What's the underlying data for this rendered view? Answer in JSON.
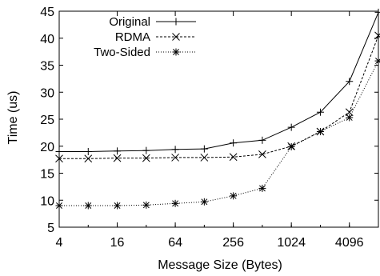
{
  "chart_data": {
    "type": "line",
    "xlabel": "Message Size (Bytes)",
    "ylabel": "Time (us)",
    "x_scale": "log2",
    "x": [
      4,
      8,
      16,
      32,
      64,
      128,
      256,
      512,
      1024,
      2048,
      4096,
      8192
    ],
    "xlim": [
      4,
      8192
    ],
    "ylim": [
      5,
      45
    ],
    "x_ticks": [
      4,
      16,
      64,
      256,
      1024,
      4096
    ],
    "x_tick_labels": [
      "4",
      "16",
      "64",
      "256",
      "1024",
      "4096"
    ],
    "y_ticks": [
      5,
      10,
      15,
      20,
      25,
      30,
      35,
      40,
      45
    ],
    "y_tick_labels": [
      "5",
      "10",
      "15",
      "20",
      "25",
      "30",
      "35",
      "40",
      "45"
    ],
    "grid": false,
    "legend_position": "top-left",
    "series": [
      {
        "name": "Original",
        "marker": "plus",
        "line_style": "solid",
        "values": [
          19.0,
          19.0,
          19.1,
          19.2,
          19.4,
          19.5,
          20.6,
          21.1,
          23.5,
          26.3,
          32.0,
          44.8
        ]
      },
      {
        "name": "RDMA",
        "marker": "x",
        "line_style": "dashed",
        "values": [
          17.7,
          17.7,
          17.8,
          17.8,
          17.9,
          17.9,
          18.0,
          18.5,
          20.0,
          22.7,
          26.3,
          40.5
        ]
      },
      {
        "name": "Two-Sided",
        "marker": "asterisk",
        "line_style": "dotted",
        "values": [
          9.0,
          9.0,
          9.0,
          9.1,
          9.4,
          9.7,
          10.8,
          12.2,
          19.9,
          22.7,
          25.3,
          35.8
        ]
      }
    ]
  }
}
